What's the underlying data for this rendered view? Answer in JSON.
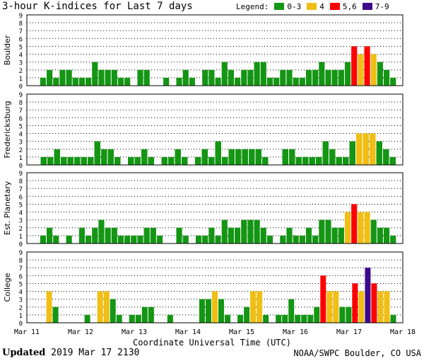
{
  "title": "3-hour K-indices for Last 7 days",
  "legend": {
    "label": "Legend:",
    "items": [
      {
        "label": "0-3",
        "color": "#149614"
      },
      {
        "label": "4",
        "color": "#f0be14"
      },
      {
        "label": "5,6",
        "color": "#ff0000"
      },
      {
        "label": "7-9",
        "color": "#3c0a8c"
      }
    ]
  },
  "footer": {
    "updated_label": "Updated",
    "updated_time": "2019 Mar 17 2130",
    "source": "NOAA/SWPC Boulder, CO USA"
  },
  "chart_data": {
    "type": "bar",
    "xlabel": "Coordinate Universal Time (UTC)",
    "x_ticks": [
      "Mar 11",
      "Mar 12",
      "Mar 13",
      "Mar 14",
      "Mar 15",
      "Mar 16",
      "Mar 17",
      "Mar 18"
    ],
    "ylim": [
      0,
      9
    ],
    "y_ticks": [
      0,
      1,
      2,
      3,
      4,
      5,
      6,
      7,
      8,
      9
    ],
    "grid": "horizontal-dotted",
    "series": [
      {
        "name": "Boulder",
        "values": [
          0,
          0,
          1,
          2,
          1,
          2,
          2,
          1,
          1,
          1,
          3,
          2,
          2,
          2,
          1,
          1,
          0,
          2,
          2,
          0,
          0,
          1,
          0,
          1,
          2,
          1,
          0,
          2,
          2,
          1,
          3,
          2,
          1,
          2,
          2,
          3,
          3,
          1,
          1,
          2,
          2,
          1,
          1,
          2,
          2,
          3,
          2,
          2,
          2,
          3,
          5,
          4,
          5,
          4,
          3,
          2,
          1,
          0
        ]
      },
      {
        "name": "Fredericksburg",
        "values": [
          0,
          0,
          1,
          1,
          2,
          1,
          1,
          1,
          1,
          1,
          3,
          2,
          2,
          1,
          0,
          1,
          1,
          2,
          1,
          0,
          1,
          1,
          2,
          1,
          0,
          1,
          2,
          1,
          3,
          1,
          2,
          2,
          2,
          2,
          2,
          1,
          0,
          0,
          2,
          2,
          1,
          1,
          1,
          1,
          3,
          2,
          1,
          1,
          3,
          4,
          4,
          4,
          3,
          2,
          1,
          0
        ]
      },
      {
        "name": "Est. Planetary",
        "values": [
          0,
          0,
          1,
          2,
          1,
          0,
          1,
          0,
          2,
          1,
          2,
          3,
          2,
          2,
          1,
          1,
          1,
          1,
          2,
          2,
          1,
          0,
          0,
          2,
          1,
          0,
          1,
          1,
          2,
          1,
          3,
          2,
          2,
          3,
          3,
          3,
          2,
          1,
          0,
          1,
          2,
          1,
          1,
          2,
          1,
          3,
          3,
          2,
          2,
          4,
          5,
          4,
          4,
          3,
          2,
          2,
          1,
          0
        ]
      },
      {
        "name": "College",
        "values": [
          0,
          0,
          0,
          4,
          2,
          0,
          0,
          0,
          0,
          1,
          0,
          4,
          4,
          3,
          1,
          0,
          1,
          1,
          2,
          2,
          0,
          0,
          1,
          0,
          0,
          0,
          0,
          3,
          3,
          4,
          3,
          1,
          0,
          1,
          2,
          4,
          4,
          1,
          0,
          1,
          1,
          3,
          1,
          1,
          1,
          2,
          6,
          4,
          4,
          2,
          2,
          5,
          4,
          7,
          5,
          4,
          4,
          1,
          0
        ]
      }
    ]
  }
}
